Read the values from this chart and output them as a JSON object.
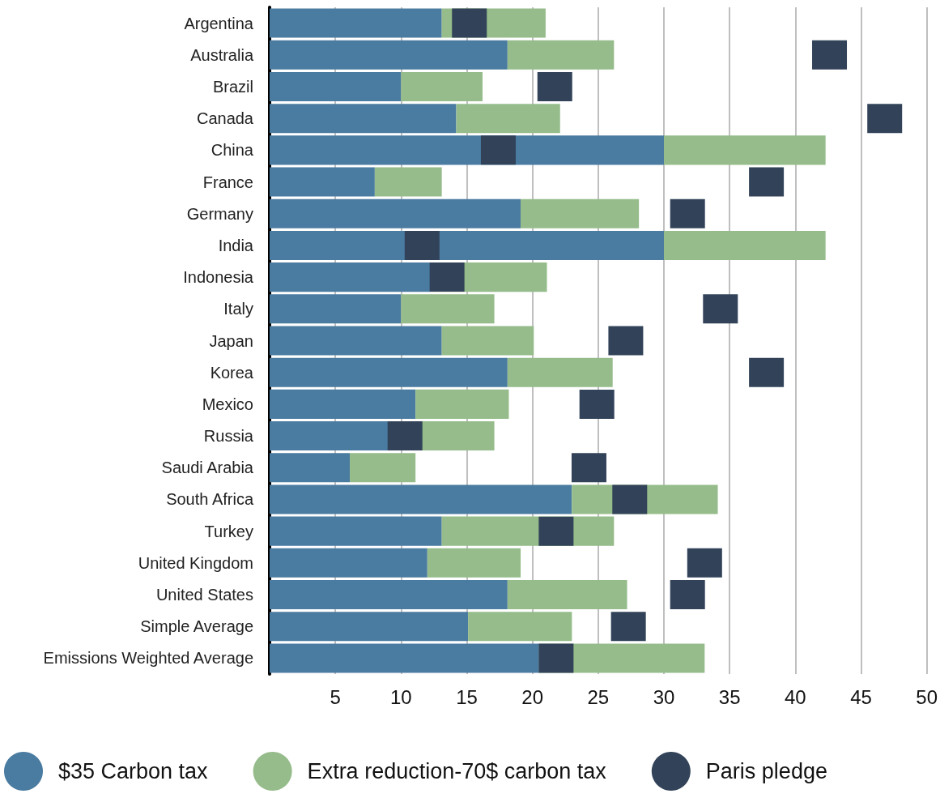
{
  "chart_data": {
    "type": "bar",
    "orientation": "horizontal",
    "stacked": true,
    "grid": "x",
    "legend": "bottom",
    "categories": [
      "Argentina",
      "Australia",
      "Brazil",
      "Canada",
      "China",
      "France",
      "Germany",
      "India",
      "Indonesia",
      "Italy",
      "Japan",
      "Korea",
      "Mexico",
      "Russia",
      "Saudi Arabia",
      "South Africa",
      "Turkey",
      "United Kingdom",
      "United States",
      "Simple Average",
      "Emissions Weighted Average"
    ],
    "xlim": [
      0,
      50
    ],
    "xticks": [
      5,
      10,
      15,
      20,
      25,
      30,
      35,
      40,
      45,
      50
    ],
    "series": [
      {
        "name": "$35 Carbon tax",
        "color": "#4a7ba0",
        "values": [
          13.1,
          18.1,
          10.0,
          14.2,
          30.0,
          8.0,
          19.1,
          30.0,
          12.2,
          10.0,
          13.1,
          18.1,
          11.1,
          9.1,
          6.1,
          23.0,
          13.1,
          12.0,
          18.1,
          15.1,
          20.5
        ]
      },
      {
        "name": "Extra reduction-70$ carbon tax",
        "color": "#95bc8a",
        "values": [
          7.9,
          8.1,
          6.2,
          7.9,
          12.3,
          5.1,
          9.0,
          12.3,
          8.9,
          7.1,
          7.0,
          8.0,
          7.1,
          8.0,
          5.0,
          11.1,
          13.1,
          7.1,
          9.1,
          7.9,
          12.6
        ]
      },
      {
        "name": "Paris pledge",
        "color": "#324359",
        "type": "scatter",
        "marker": "square",
        "values": [
          15.2,
          42.6,
          21.7,
          46.8,
          17.4,
          37.8,
          31.8,
          11.6,
          13.5,
          34.3,
          27.1,
          37.8,
          24.9,
          10.3,
          24.3,
          27.4,
          21.8,
          33.1,
          31.8,
          27.3,
          21.8
        ]
      }
    ]
  }
}
